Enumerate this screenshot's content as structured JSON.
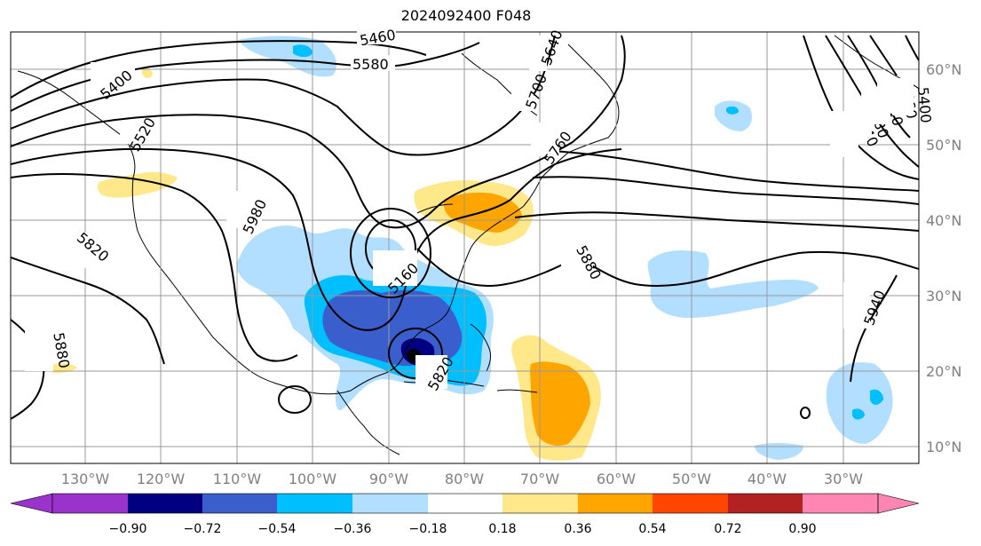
{
  "title": "2024092400 F048",
  "lon_labels": [
    "130°W",
    "120°W",
    "110°W",
    "100°W",
    "90°W",
    "80°W",
    "70°W",
    "60°W",
    "50°W",
    "40°W",
    "30°W"
  ],
  "lat_labels": [
    "60°N",
    "50°N",
    "40°N",
    "30°N",
    "20°N",
    "10°N"
  ],
  "contour_labels": [
    "5460",
    "5580",
    "5400",
    "5520",
    "5700",
    "5640",
    "5760",
    "5980",
    "5820",
    "5880",
    "5160",
    "5880",
    "5820",
    "5940",
    "5640",
    "5580",
    "5520",
    "5460",
    "5400"
  ],
  "colorbar": {
    "ticks": [
      "−0.90",
      "−0.72",
      "−0.54",
      "−0.36",
      "−0.18",
      "0.18",
      "0.36",
      "0.54",
      "0.72",
      "0.90"
    ],
    "colors": [
      "#9933cc",
      "#000080",
      "#3a5fcd",
      "#00bfff",
      "#b2dfff",
      "#ffffff",
      "#ffe88a",
      "#ffa500",
      "#ff4500",
      "#b22222",
      "#ff85b3"
    ]
  },
  "fills": {
    "light_blue": "#b2dfff",
    "cyan": "#00bfff",
    "blue": "#3a5fcd",
    "navy": "#000080",
    "light_yellow": "#ffe88a",
    "orange": "#ffa500"
  }
}
